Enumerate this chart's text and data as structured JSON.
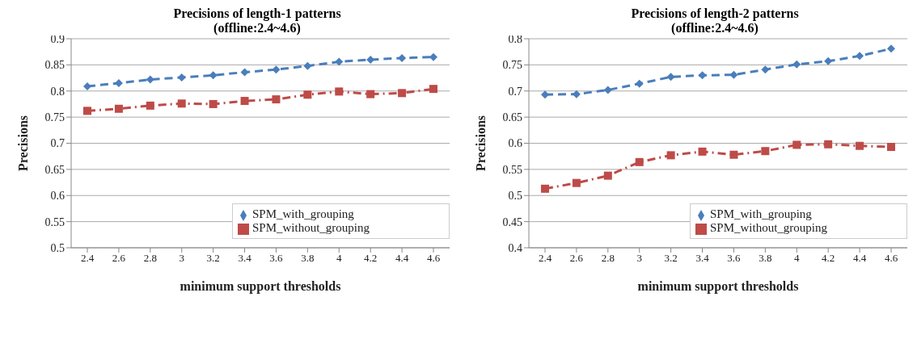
{
  "chart_data": [
    {
      "type": "line",
      "title": "Precisions of length-1 patterns",
      "subtitle": "(offline:2.4~4.6)",
      "xlabel": "minimum support thresholds",
      "ylabel": "Precisions",
      "categories": [
        "2.4",
        "2.6",
        "2.8",
        "3",
        "3.2",
        "3.4",
        "3.6",
        "3.8",
        "4",
        "4.2",
        "4.4",
        "4.6"
      ],
      "series": [
        {
          "name": "SPM_with_grouping",
          "color": "#4a7ebb",
          "marker": "diamond",
          "line_style": "dashed",
          "values": [
            0.809,
            0.815,
            0.822,
            0.826,
            0.83,
            0.836,
            0.841,
            0.848,
            0.856,
            0.86,
            0.863,
            0.865
          ]
        },
        {
          "name": "SPM_without_grouping",
          "color": "#be4b48",
          "marker": "square",
          "line_style": "dashdot",
          "values": [
            0.762,
            0.766,
            0.772,
            0.776,
            0.775,
            0.781,
            0.784,
            0.793,
            0.799,
            0.794,
            0.796,
            0.804
          ]
        }
      ],
      "ylim": [
        0.5,
        0.9
      ],
      "yticks": [
        0.5,
        0.55,
        0.6,
        0.65,
        0.7,
        0.75,
        0.8,
        0.85,
        0.9
      ],
      "grid": "y",
      "legend": "bottom right"
    },
    {
      "type": "line",
      "title": "Precisions of length-2 patterns",
      "subtitle": "(offline:2.4~4.6)",
      "xlabel": "minimum support thresholds",
      "ylabel": "Precisions",
      "categories": [
        "2.4",
        "2.6",
        "2.8",
        "3",
        "3.2",
        "3.4",
        "3.6",
        "3.8",
        "4",
        "4.2",
        "4.4",
        "4.6"
      ],
      "series": [
        {
          "name": "SPM_with_grouping",
          "color": "#4a7ebb",
          "marker": "diamond",
          "line_style": "dashed",
          "values": [
            0.693,
            0.694,
            0.702,
            0.714,
            0.727,
            0.73,
            0.731,
            0.741,
            0.751,
            0.757,
            0.767,
            0.781
          ]
        },
        {
          "name": "SPM_without_grouping",
          "color": "#be4b48",
          "marker": "square",
          "line_style": "dashdot",
          "values": [
            0.513,
            0.524,
            0.538,
            0.564,
            0.577,
            0.584,
            0.578,
            0.585,
            0.597,
            0.598,
            0.595,
            0.593
          ]
        }
      ],
      "ylim": [
        0.4,
        0.8
      ],
      "yticks": [
        0.4,
        0.45,
        0.5,
        0.55,
        0.6,
        0.65,
        0.7,
        0.75,
        0.8
      ],
      "grid": "y",
      "legend": "bottom right"
    }
  ]
}
